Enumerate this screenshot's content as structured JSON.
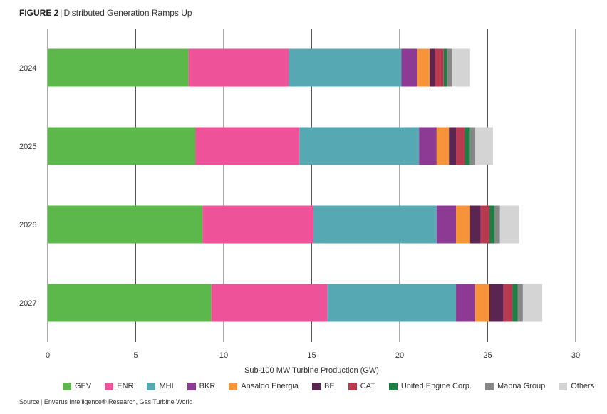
{
  "header": {
    "figure_label": "FIGURE 2",
    "separator": "|",
    "title": "Distributed Generation Ramps Up"
  },
  "footer": {
    "source_label": "Source",
    "separator": "|",
    "source_text": "Enverus Intelligence® Research, Gas Turbine World"
  },
  "chart_data": {
    "type": "bar",
    "orientation": "horizontal",
    "stacked": true,
    "title": "Distributed Generation Ramps Up",
    "xlabel": "Sub-100 MW Turbine Production (GW)",
    "ylabel": "",
    "xlim": [
      0,
      30
    ],
    "xticks": [
      0,
      5,
      10,
      15,
      20,
      25,
      30
    ],
    "grid": true,
    "legend_position": "bottom",
    "categories": [
      "2024",
      "2025",
      "2026",
      "2027"
    ],
    "series": [
      {
        "name": "GEV",
        "color": "#5cb84a",
        "values": [
          8.0,
          8.4,
          8.8,
          9.3
        ]
      },
      {
        "name": "ENR",
        "color": "#ee539a",
        "values": [
          5.7,
          5.9,
          6.3,
          6.6
        ]
      },
      {
        "name": "MHI",
        "color": "#56a8b2",
        "values": [
          6.4,
          6.8,
          7.0,
          7.3
        ]
      },
      {
        "name": "BKR",
        "color": "#8c3a94",
        "values": [
          0.9,
          1.0,
          1.1,
          1.1
        ]
      },
      {
        "name": "Ansaldo Energia",
        "color": "#f7943a",
        "values": [
          0.7,
          0.7,
          0.8,
          0.8
        ]
      },
      {
        "name": "BE",
        "color": "#5a2550",
        "values": [
          0.3,
          0.4,
          0.6,
          0.8
        ]
      },
      {
        "name": "CAT",
        "color": "#b83a50",
        "values": [
          0.5,
          0.5,
          0.5,
          0.5
        ]
      },
      {
        "name": "United Engine Corp.",
        "color": "#1e7e45",
        "values": [
          0.2,
          0.3,
          0.3,
          0.3
        ]
      },
      {
        "name": "Mapna Group",
        "color": "#888888",
        "values": [
          0.3,
          0.3,
          0.3,
          0.3
        ]
      },
      {
        "name": "Others",
        "color": "#d4d4d4",
        "values": [
          1.0,
          1.0,
          1.1,
          1.1
        ]
      }
    ]
  }
}
